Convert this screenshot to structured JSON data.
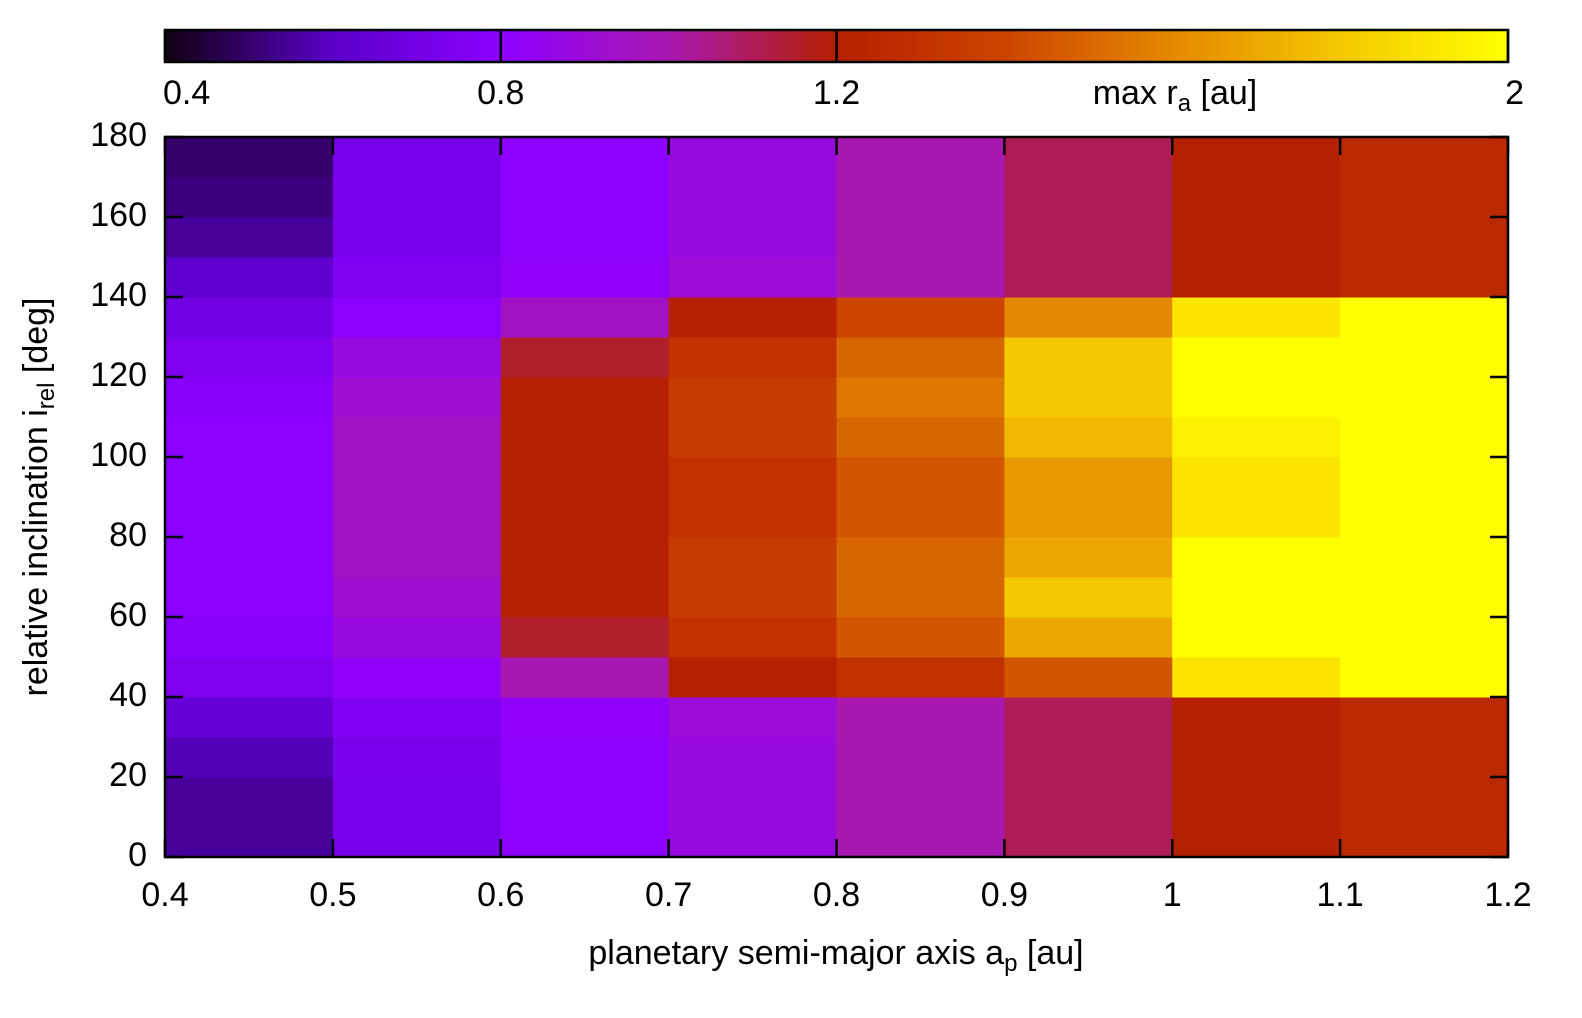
{
  "chart_data": {
    "type": "heatmap",
    "xlabel": [
      "planetary semi-major axis a",
      "p",
      " [au]"
    ],
    "ylabel": [
      "relative inclination i",
      "rel",
      " [deg]"
    ],
    "colorbar_label": [
      "max r",
      "a",
      " [au]"
    ],
    "xbins": [
      0.4,
      0.5,
      0.6,
      0.7,
      0.8,
      0.9,
      1.0,
      1.1,
      1.2
    ],
    "ybins": [
      0,
      10,
      20,
      30,
      40,
      50,
      60,
      70,
      80,
      90,
      100,
      110,
      120,
      130,
      140,
      150,
      160,
      170,
      180
    ],
    "values": [
      [
        0.55,
        0.72,
        0.8,
        0.88,
        1.0,
        1.1,
        1.2,
        1.25
      ],
      [
        0.55,
        0.72,
        0.8,
        0.88,
        1.0,
        1.1,
        1.2,
        1.25
      ],
      [
        0.58,
        0.73,
        0.8,
        0.88,
        1.0,
        1.1,
        1.2,
        1.25
      ],
      [
        0.65,
        0.76,
        0.82,
        0.9,
        1.0,
        1.1,
        1.2,
        1.25
      ],
      [
        0.75,
        0.82,
        1.0,
        1.2,
        1.3,
        1.45,
        1.9,
        2
      ],
      [
        0.78,
        0.88,
        1.15,
        1.3,
        1.45,
        1.7,
        2,
        2
      ],
      [
        0.8,
        0.92,
        1.2,
        1.35,
        1.5,
        1.8,
        2,
        2
      ],
      [
        0.8,
        0.95,
        1.2,
        1.35,
        1.5,
        1.7,
        2,
        2
      ],
      [
        0.8,
        0.95,
        1.2,
        1.3,
        1.45,
        1.65,
        1.9,
        2
      ],
      [
        0.8,
        0.95,
        1.2,
        1.3,
        1.45,
        1.65,
        1.9,
        2
      ],
      [
        0.8,
        0.95,
        1.2,
        1.35,
        1.5,
        1.75,
        1.95,
        2
      ],
      [
        0.78,
        0.92,
        1.2,
        1.35,
        1.55,
        1.8,
        2,
        2
      ],
      [
        0.75,
        0.88,
        1.15,
        1.3,
        1.5,
        1.8,
        2,
        2
      ],
      [
        0.7,
        0.8,
        0.95,
        1.2,
        1.4,
        1.6,
        1.9,
        2
      ],
      [
        0.62,
        0.75,
        0.82,
        0.9,
        1.0,
        1.1,
        1.2,
        1.25
      ],
      [
        0.55,
        0.72,
        0.8,
        0.88,
        1.0,
        1.1,
        1.2,
        1.25
      ],
      [
        0.52,
        0.72,
        0.8,
        0.88,
        1.0,
        1.1,
        1.2,
        1.25
      ],
      [
        0.5,
        0.72,
        0.8,
        0.88,
        1.0,
        1.1,
        1.2,
        1.25
      ]
    ],
    "xlim": [
      0.4,
      1.2
    ],
    "xticks": [
      0.4,
      0.5,
      0.6,
      0.7,
      0.8,
      0.9,
      1,
      1.1,
      1.2
    ],
    "ylim": [
      0,
      180
    ],
    "yticks": [
      0,
      20,
      40,
      60,
      80,
      100,
      120,
      140,
      160,
      180
    ],
    "clim": [
      0.4,
      2
    ],
    "cticks": [
      0.4,
      0.8,
      1.2,
      2
    ],
    "colormap": [
      "#100010",
      "#5a00c8",
      "#8c00ff",
      "#a818b0",
      "#b42000",
      "#cc4400",
      "#e48800",
      "#f4c800",
      "#ffff00"
    ]
  }
}
